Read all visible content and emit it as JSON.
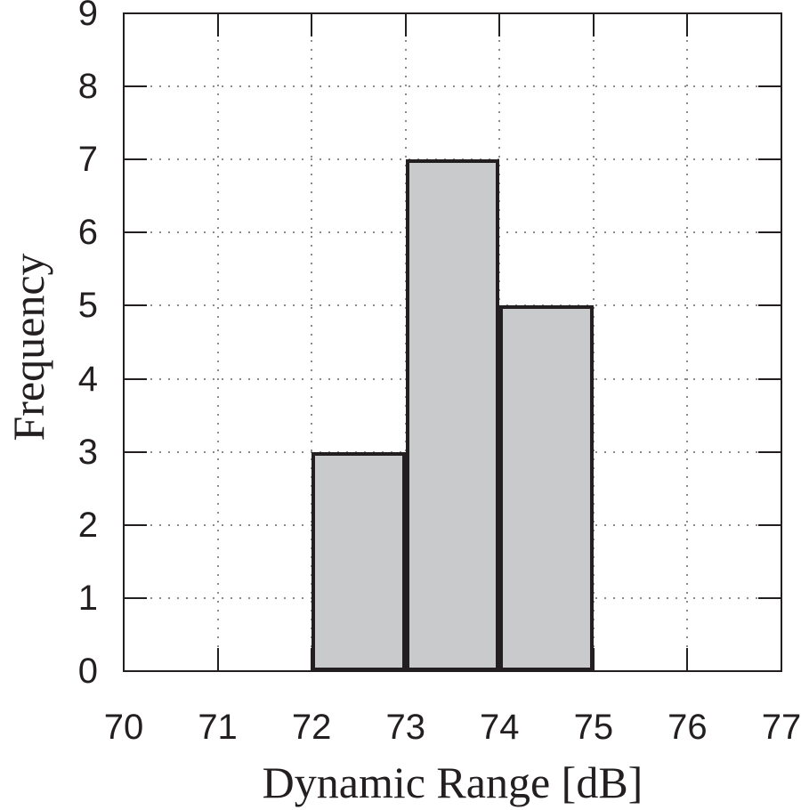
{
  "chart_data": {
    "type": "bar",
    "subtype": "histogram",
    "title": "",
    "xlabel": "Dynamic Range [dB]",
    "ylabel": "Frequency",
    "xlim": [
      70,
      77
    ],
    "ylim": [
      0,
      9
    ],
    "x_ticks": [
      70,
      71,
      72,
      73,
      74,
      75,
      76,
      77
    ],
    "y_ticks": [
      0,
      1,
      2,
      3,
      4,
      5,
      6,
      7,
      8,
      9
    ],
    "grid": "dotted",
    "legend": "none",
    "bins": [
      {
        "x_start": 72,
        "x_end": 73,
        "frequency": 3
      },
      {
        "x_start": 73,
        "x_end": 74,
        "frequency": 7
      },
      {
        "x_start": 74,
        "x_end": 75,
        "frequency": 5
      }
    ],
    "colors": {
      "background": "#ffffff",
      "bar_fill": "#c9cacb",
      "bar_border": "#231f20",
      "axis": "#231f20",
      "grid": "#8c8c8c",
      "text": "#231f20"
    }
  }
}
